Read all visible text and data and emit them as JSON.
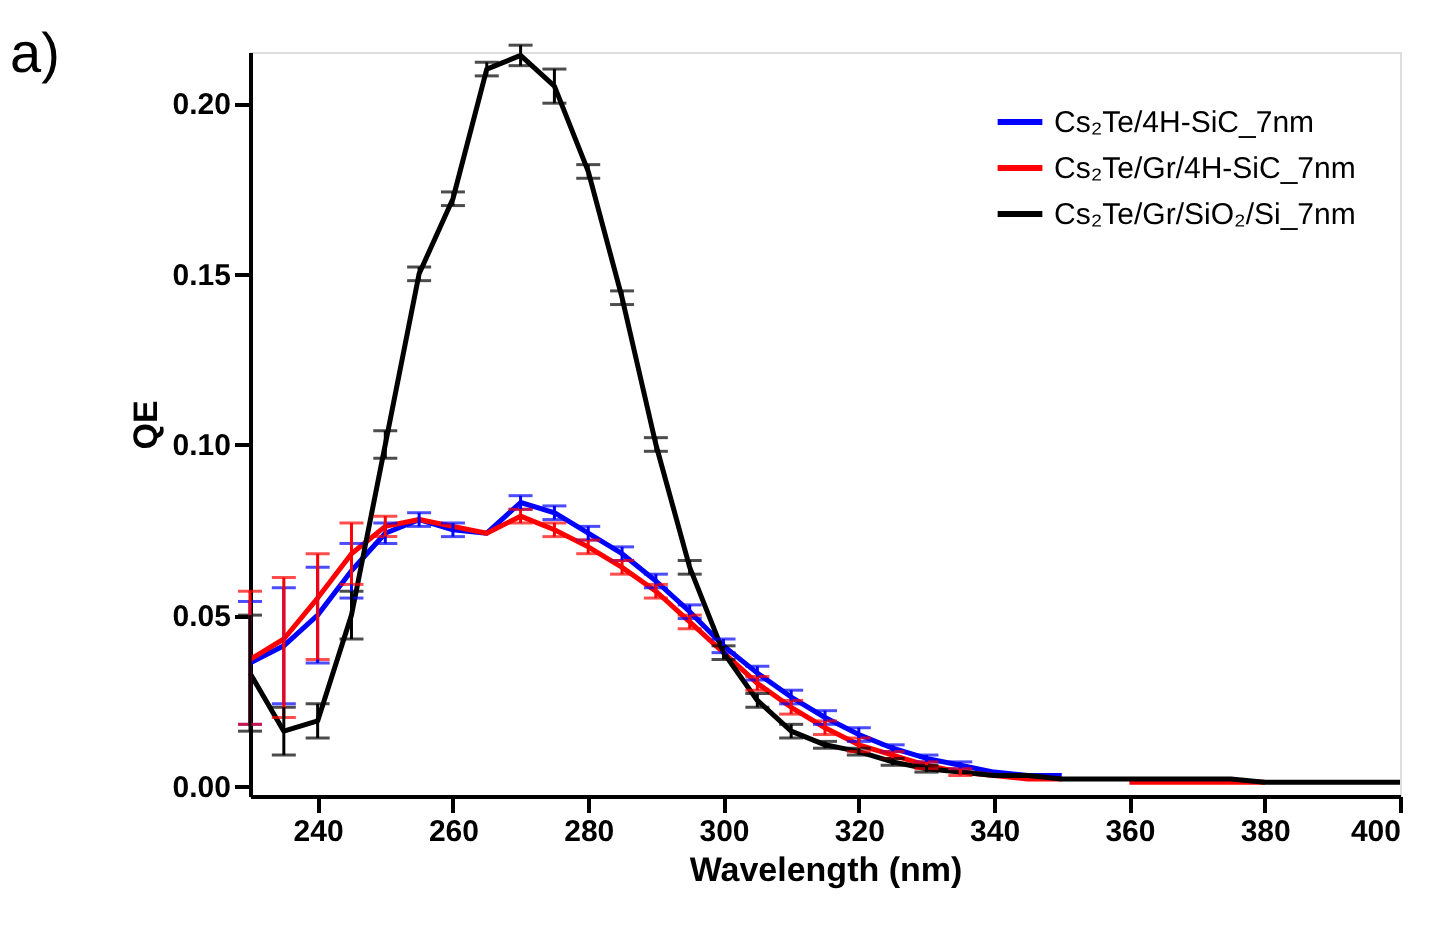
{
  "chart_data": {
    "type": "line",
    "xlabel": "Wavelength (nm)",
    "ylabel": "QE",
    "annotations": [
      "a)"
    ],
    "x": [
      230,
      235,
      240,
      245,
      250,
      255,
      260,
      265,
      270,
      275,
      280,
      285,
      290,
      295,
      300,
      305,
      310,
      315,
      320,
      325,
      330,
      335,
      340,
      345,
      350,
      355,
      360,
      365,
      370,
      375,
      380,
      385,
      390,
      395,
      400
    ],
    "xlim": [
      230,
      400
    ],
    "xticks": [
      240,
      260,
      280,
      300,
      320,
      340,
      360,
      380,
      400
    ],
    "ylim": [
      -0.003,
      0.215
    ],
    "yticks": [
      {
        "value": 0,
        "label": "0.00"
      },
      0.05,
      {
        "value": 0.1,
        "label": "0.10"
      },
      0.15,
      {
        "value": 0.2,
        "label": "0.20"
      }
    ],
    "grid": false,
    "legend": "top right",
    "marker": "none",
    "line_style": "solid",
    "series": [
      {
        "name": "Cs₂Te/4H-SiC_7nm",
        "color": "#0000ff",
        "values": [
          0.036,
          0.041,
          0.05,
          0.063,
          0.074,
          0.078,
          0.075,
          0.074,
          0.083,
          0.08,
          0.074,
          0.068,
          0.06,
          0.051,
          0.041,
          0.033,
          0.026,
          0.02,
          0.015,
          0.011,
          0.008,
          0.006,
          0.004,
          0.003,
          0.003,
          null,
          null,
          null,
          null,
          null,
          null,
          null,
          null,
          null,
          null
        ],
        "errors": [
          [
            0.018,
            0.054
          ],
          0.017,
          0.014,
          0.008,
          0.003,
          0.002,
          0.002,
          null,
          0.002,
          0.002,
          0.002,
          0.002,
          0.002,
          0.002,
          0.002,
          0.002,
          0.002,
          0.002,
          0.002,
          0.001,
          0.001,
          0.001,
          null,
          null,
          null,
          null,
          null,
          null,
          null,
          null,
          null,
          null,
          null,
          null,
          null
        ]
      },
      {
        "name": "Cs₂Te/Gr/4H-SiC_7nm",
        "color": "#ff0000",
        "values": [
          0.037,
          0.043,
          0.055,
          0.068,
          0.076,
          0.078,
          0.076,
          0.074,
          0.079,
          0.075,
          0.07,
          0.064,
          0.057,
          0.048,
          0.039,
          0.03,
          0.023,
          0.017,
          0.012,
          0.009,
          0.006,
          0.004,
          0.003,
          0.002,
          0.002,
          null,
          0.001,
          0.001,
          0.001,
          0.001,
          0.001,
          null,
          null,
          null,
          null
        ],
        "errors": [
          [
            0.018,
            0.057
          ],
          [
            0.02,
            0.061
          ],
          [
            0.037,
            0.068
          ],
          0.009,
          0.003,
          null,
          null,
          null,
          0.002,
          0.002,
          0.002,
          0.002,
          0.002,
          0.002,
          null,
          0.002,
          0.002,
          0.002,
          0.002,
          0.001,
          0.001,
          0.001,
          null,
          null,
          null,
          null,
          null,
          null,
          null,
          null,
          null,
          null,
          null,
          null,
          null
        ]
      },
      {
        "name": "Cs₂Te/Gr/SiO₂/Si_7nm",
        "color": "#000000",
        "values": [
          0.033,
          0.016,
          0.019,
          0.05,
          0.1,
          0.15,
          0.172,
          0.21,
          0.214,
          0.205,
          0.18,
          0.143,
          0.1,
          0.064,
          0.039,
          0.025,
          0.016,
          0.012,
          0.01,
          0.007,
          0.005,
          0.004,
          0.003,
          0.003,
          0.002,
          0.002,
          0.002,
          0.002,
          0.002,
          0.002,
          0.001,
          0.001,
          0.001,
          0.001,
          0.001
        ],
        "errors": [
          [
            0.016,
            0.05
          ],
          0.007,
          0.005,
          0.007,
          0.004,
          0.002,
          0.002,
          0.002,
          0.003,
          0.005,
          0.002,
          0.002,
          0.002,
          0.002,
          0.002,
          0.002,
          0.002,
          0.001,
          0.001,
          0.001,
          0.001,
          null,
          null,
          null,
          null,
          null,
          null,
          null,
          null,
          null,
          null,
          null,
          null,
          null,
          null
        ]
      }
    ]
  }
}
